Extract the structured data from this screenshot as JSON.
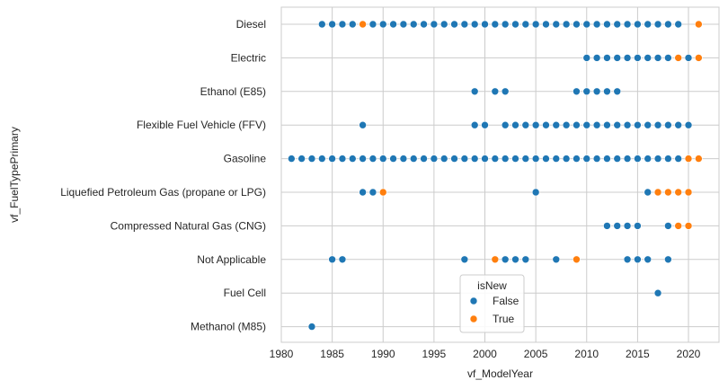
{
  "chart_data": {
    "type": "scatter",
    "xlabel": "vf_ModelYear",
    "ylabel": "vf_FuelTypePrimary",
    "xlim": [
      1980,
      2023
    ],
    "x_ticks": [
      1980,
      1985,
      1990,
      1995,
      2000,
      2005,
      2010,
      2015,
      2020
    ],
    "categories": [
      "Diesel",
      "Electric",
      "Ethanol (E85)",
      "Flexible Fuel Vehicle (FFV)",
      "Gasoline",
      "Liquefied Petroleum Gas (propane or LPG)",
      "Compressed Natural Gas (CNG)",
      "Not Applicable",
      "Fuel Cell",
      "Methanol (M85)"
    ],
    "grid": true,
    "legend": {
      "title": "isNew",
      "placement": "lower-center"
    },
    "series": [
      {
        "name": "False",
        "color": "#1f77b4",
        "points": [
          {
            "category": "Diesel",
            "x": [
              1984,
              1985,
              1986,
              1987,
              1989,
              1990,
              1991,
              1992,
              1993,
              1994,
              1995,
              1996,
              1997,
              1998,
              1999,
              2000,
              2001,
              2002,
              2003,
              2004,
              2005,
              2006,
              2007,
              2008,
              2009,
              2010,
              2011,
              2012,
              2013,
              2014,
              2015,
              2016,
              2017,
              2018,
              2019
            ]
          },
          {
            "category": "Electric",
            "x": [
              2010,
              2011,
              2012,
              2013,
              2014,
              2015,
              2016,
              2017,
              2018,
              2020
            ]
          },
          {
            "category": "Ethanol (E85)",
            "x": [
              1999,
              2001,
              2002,
              2009,
              2010,
              2011,
              2012,
              2013
            ]
          },
          {
            "category": "Flexible Fuel Vehicle (FFV)",
            "x": [
              1988,
              1999,
              2000,
              2002,
              2003,
              2004,
              2005,
              2006,
              2007,
              2008,
              2009,
              2010,
              2011,
              2012,
              2013,
              2014,
              2015,
              2016,
              2017,
              2018,
              2019,
              2020
            ]
          },
          {
            "category": "Gasoline",
            "x": [
              1981,
              1982,
              1983,
              1984,
              1985,
              1986,
              1987,
              1988,
              1989,
              1990,
              1991,
              1992,
              1993,
              1994,
              1995,
              1996,
              1997,
              1998,
              1999,
              2000,
              2001,
              2002,
              2003,
              2004,
              2005,
              2006,
              2007,
              2008,
              2009,
              2010,
              2011,
              2012,
              2013,
              2014,
              2015,
              2016,
              2017,
              2018,
              2019
            ]
          },
          {
            "category": "Liquefied Petroleum Gas (propane or LPG)",
            "x": [
              1988,
              1989,
              2005,
              2016
            ]
          },
          {
            "category": "Compressed Natural Gas (CNG)",
            "x": [
              2012,
              2013,
              2014,
              2015,
              2018
            ]
          },
          {
            "category": "Not Applicable",
            "x": [
              1985,
              1986,
              1998,
              2002,
              2003,
              2004,
              2007,
              2014,
              2015,
              2016,
              2018
            ]
          },
          {
            "category": "Fuel Cell",
            "x": [
              2017
            ]
          },
          {
            "category": "Methanol (M85)",
            "x": [
              1983
            ]
          }
        ]
      },
      {
        "name": "True",
        "color": "#ff7f0e",
        "points": [
          {
            "category": "Diesel",
            "x": [
              1988,
              2021
            ]
          },
          {
            "category": "Electric",
            "x": [
              2019,
              2021
            ]
          },
          {
            "category": "Gasoline",
            "x": [
              2020,
              2021
            ]
          },
          {
            "category": "Liquefied Petroleum Gas (propane or LPG)",
            "x": [
              1990,
              2017,
              2018,
              2019,
              2020
            ]
          },
          {
            "category": "Compressed Natural Gas (CNG)",
            "x": [
              2019,
              2020
            ]
          },
          {
            "category": "Not Applicable",
            "x": [
              2001,
              2009
            ]
          }
        ]
      }
    ]
  }
}
